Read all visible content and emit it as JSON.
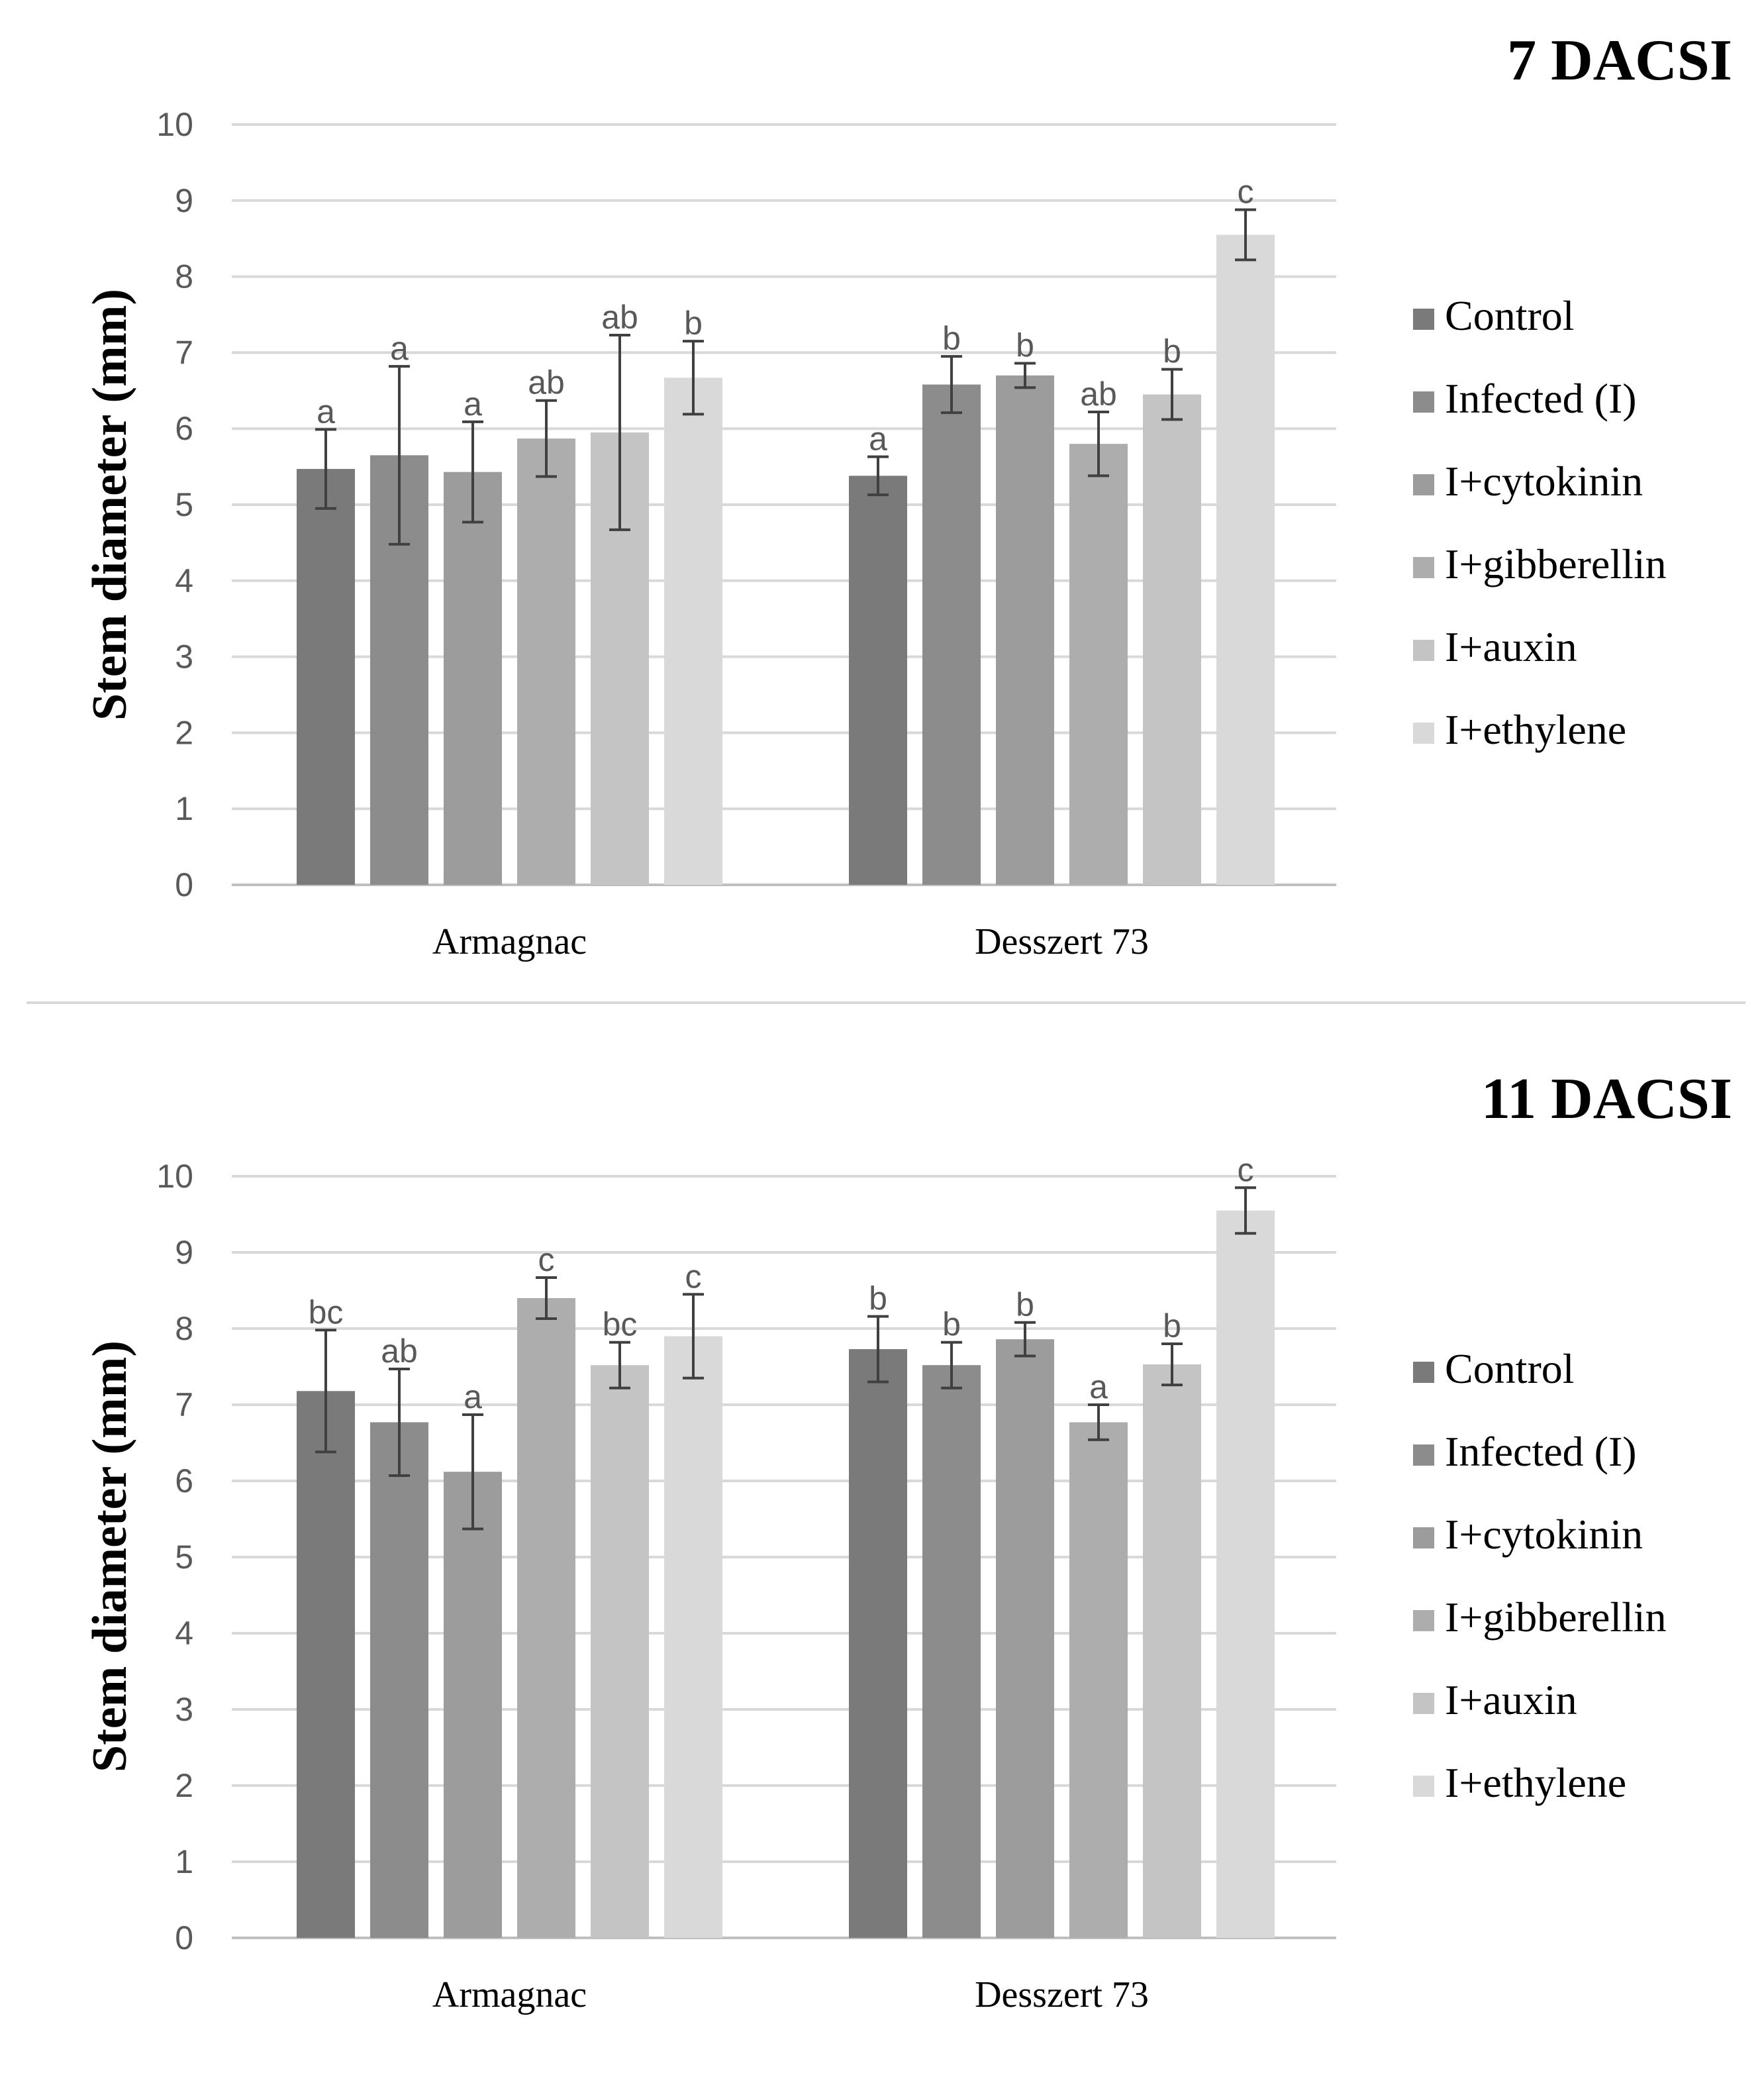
{
  "series_colors": [
    "#7a7a7a",
    "#8c8c8c",
    "#9c9c9c",
    "#adadad",
    "#c4c4c4",
    "#d9d9d9"
  ],
  "chart_data": [
    {
      "type": "bar",
      "title": "7 DACSI",
      "ylabel": "Stem diameter (mm)",
      "xlabel": "",
      "ylim": [
        0,
        10
      ],
      "yticks": [
        "0",
        "1",
        "2",
        "3",
        "4",
        "5",
        "6",
        "7",
        "8",
        "9",
        "10"
      ],
      "categories": [
        "Armagnac",
        "Desszert 73"
      ],
      "legend_position": "right",
      "series": [
        {
          "name": "Control",
          "values": [
            5.47,
            5.38
          ],
          "errors": [
            0.52,
            0.25
          ],
          "letters": [
            "a",
            "a"
          ]
        },
        {
          "name": "Infected (I)",
          "values": [
            5.65,
            6.58
          ],
          "errors": [
            1.17,
            0.37
          ],
          "letters": [
            "a",
            "b"
          ]
        },
        {
          "name": "I+cytokinin",
          "values": [
            5.43,
            6.7
          ],
          "errors": [
            0.66,
            0.16
          ],
          "letters": [
            "a",
            "b"
          ]
        },
        {
          "name": "I+gibberellin",
          "values": [
            5.87,
            5.8
          ],
          "errors": [
            0.5,
            0.42
          ],
          "letters": [
            "ab",
            "ab"
          ]
        },
        {
          "name": "I+auxin",
          "values": [
            5.95,
            6.45
          ],
          "errors": [
            1.28,
            0.33
          ],
          "letters": [
            "ab",
            "b"
          ]
        },
        {
          "name": "I+ethylene",
          "values": [
            6.67,
            8.55
          ],
          "errors": [
            0.48,
            0.33
          ],
          "letters": [
            "b",
            "c"
          ]
        }
      ]
    },
    {
      "type": "bar",
      "title": "11 DACSI",
      "ylabel": "Stem diameter (mm)",
      "xlabel": "",
      "ylim": [
        0,
        10
      ],
      "yticks": [
        "0",
        "1",
        "2",
        "3",
        "4",
        "5",
        "6",
        "7",
        "8",
        "9",
        "10"
      ],
      "categories": [
        "Armagnac",
        "Desszert 73"
      ],
      "legend_position": "right",
      "series": [
        {
          "name": "Control",
          "values": [
            7.18,
            7.73
          ],
          "errors": [
            0.8,
            0.43
          ],
          "letters": [
            "bc",
            "b"
          ]
        },
        {
          "name": "Infected (I)",
          "values": [
            6.77,
            7.52
          ],
          "errors": [
            0.7,
            0.3
          ],
          "letters": [
            "ab",
            "b"
          ]
        },
        {
          "name": "I+cytokinin",
          "values": [
            6.12,
            7.86
          ],
          "errors": [
            0.75,
            0.22
          ],
          "letters": [
            "a",
            "b"
          ]
        },
        {
          "name": "I+gibberellin",
          "values": [
            8.4,
            6.77
          ],
          "errors": [
            0.27,
            0.23
          ],
          "letters": [
            "c",
            "a"
          ]
        },
        {
          "name": "I+auxin",
          "values": [
            7.52,
            7.53
          ],
          "errors": [
            0.3,
            0.27
          ],
          "letters": [
            "bc",
            "b"
          ]
        },
        {
          "name": "I+ethylene",
          "values": [
            7.9,
            9.55
          ],
          "errors": [
            0.55,
            0.3
          ],
          "letters": [
            "c",
            "c"
          ]
        }
      ]
    }
  ]
}
